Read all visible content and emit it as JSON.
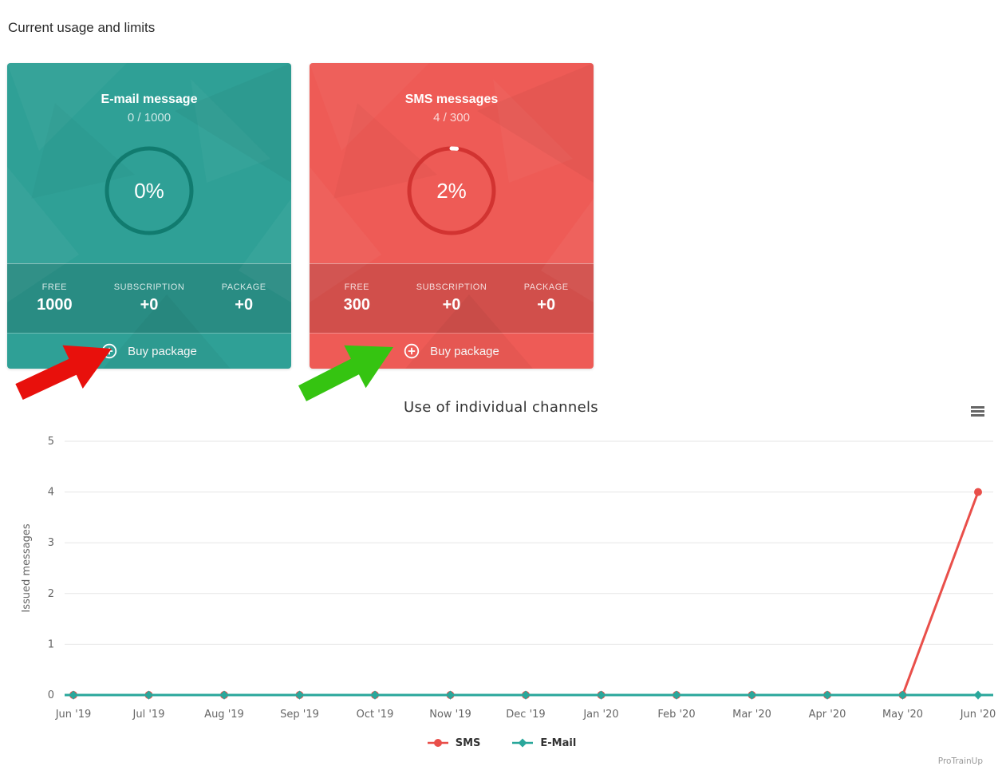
{
  "page": {
    "title": "Current usage and limits"
  },
  "cards": [
    {
      "title": "E-mail message",
      "usage": "0 / 1000",
      "percent": 0,
      "percent_label": "0%",
      "color": "#2FA096",
      "ring_color": "#117B6F",
      "stats": [
        {
          "label": "FREE",
          "value": "1000"
        },
        {
          "label": "SUBSCRIPTION",
          "value": "+0"
        },
        {
          "label": "PACKAGE",
          "value": "+0"
        }
      ],
      "buy_label": "Buy package"
    },
    {
      "title": "SMS messages",
      "usage": "4 / 300",
      "percent": 2,
      "percent_label": "2%",
      "color": "#EE5B56",
      "ring_color": "#D23331",
      "stats": [
        {
          "label": "FREE",
          "value": "300"
        },
        {
          "label": "SUBSCRIPTION",
          "value": "+0"
        },
        {
          "label": "PACKAGE",
          "value": "+0"
        }
      ],
      "buy_label": "Buy package"
    }
  ],
  "arrows": [
    {
      "name": "red-arrow",
      "color": "#E8100C"
    },
    {
      "name": "green-arrow",
      "color": "#35C411"
    }
  ],
  "chart_data": {
    "type": "line",
    "title": "Use of individual channels",
    "ylabel": "Issued messages",
    "xlabel": "",
    "categories": [
      "Jun '19",
      "Jul '19",
      "Aug '19",
      "Sep '19",
      "Oct '19",
      "Now '19",
      "Dec '19",
      "Jan '20",
      "Feb '20",
      "Mar '20",
      "Apr '20",
      "May '20",
      "Jun '20"
    ],
    "yticks": [
      0,
      1,
      2,
      3,
      4,
      5
    ],
    "ylim": [
      0,
      5
    ],
    "grid": true,
    "legend_position": "bottom",
    "series": [
      {
        "name": "SMS",
        "color": "#E94F4A",
        "marker": "circle",
        "values": [
          0,
          0,
          0,
          0,
          0,
          0,
          0,
          0,
          0,
          0,
          0,
          0,
          4
        ],
        "extend_left": true,
        "extend_right": false
      },
      {
        "name": "E-Mail",
        "color": "#2AA79B",
        "marker": "diamond",
        "values": [
          0,
          0,
          0,
          0,
          0,
          0,
          0,
          0,
          0,
          0,
          0,
          0,
          0
        ],
        "extend_left": true,
        "extend_right": true
      }
    ],
    "credits": "ProTrainUp",
    "colors": {
      "grid": "#E6E6E6",
      "axis": "#CCD6EB",
      "tick_label": "#666666",
      "title": "#333333"
    }
  }
}
